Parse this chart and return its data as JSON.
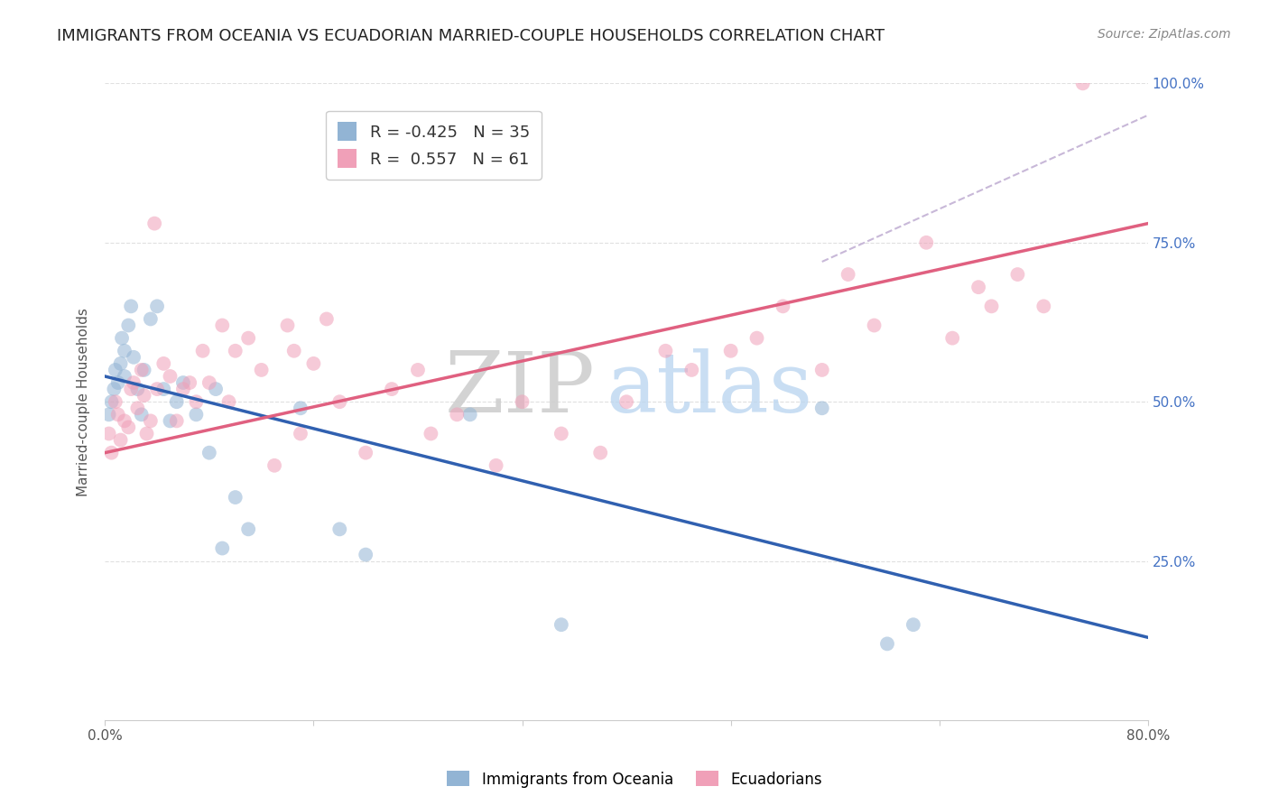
{
  "title": "IMMIGRANTS FROM OCEANIA VS ECUADORIAN MARRIED-COUPLE HOUSEHOLDS CORRELATION CHART",
  "source": "Source: ZipAtlas.com",
  "ylabel": "Married-couple Households",
  "watermark_zip": "ZIP",
  "watermark_atlas": "atlas",
  "legend_line1": "R = -0.425   N = 35",
  "legend_line2": "R =  0.557   N = 61",
  "legend_bottom": [
    "Immigrants from Oceania",
    "Ecuadorians"
  ],
  "blue_scatter_x": [
    0.3,
    0.5,
    0.7,
    0.8,
    1.0,
    1.2,
    1.3,
    1.5,
    1.5,
    1.8,
    2.0,
    2.2,
    2.5,
    2.8,
    3.0,
    3.5,
    4.0,
    4.5,
    5.0,
    5.5,
    6.0,
    7.0,
    8.0,
    8.5,
    9.0,
    10.0,
    11.0,
    15.0,
    18.0,
    20.0,
    28.0,
    35.0,
    55.0,
    60.0,
    62.0
  ],
  "blue_scatter_y": [
    48.0,
    50.0,
    52.0,
    55.0,
    53.0,
    56.0,
    60.0,
    58.0,
    54.0,
    62.0,
    65.0,
    57.0,
    52.0,
    48.0,
    55.0,
    63.0,
    65.0,
    52.0,
    47.0,
    50.0,
    53.0,
    48.0,
    42.0,
    52.0,
    27.0,
    35.0,
    30.0,
    49.0,
    30.0,
    26.0,
    48.0,
    15.0,
    49.0,
    12.0,
    15.0
  ],
  "pink_scatter_x": [
    0.3,
    0.5,
    0.8,
    1.0,
    1.2,
    1.5,
    1.8,
    2.0,
    2.2,
    2.5,
    2.8,
    3.0,
    3.2,
    3.5,
    3.8,
    4.0,
    4.5,
    5.0,
    5.5,
    6.0,
    6.5,
    7.0,
    7.5,
    8.0,
    9.0,
    9.5,
    10.0,
    11.0,
    12.0,
    13.0,
    14.0,
    14.5,
    15.0,
    16.0,
    17.0,
    18.0,
    20.0,
    22.0,
    24.0,
    25.0,
    27.0,
    30.0,
    32.0,
    35.0,
    38.0,
    40.0,
    43.0,
    45.0,
    48.0,
    50.0,
    52.0,
    55.0,
    57.0,
    59.0,
    63.0,
    65.0,
    67.0,
    68.0,
    70.0,
    72.0,
    75.0
  ],
  "pink_scatter_y": [
    45.0,
    42.0,
    50.0,
    48.0,
    44.0,
    47.0,
    46.0,
    52.0,
    53.0,
    49.0,
    55.0,
    51.0,
    45.0,
    47.0,
    78.0,
    52.0,
    56.0,
    54.0,
    47.0,
    52.0,
    53.0,
    50.0,
    58.0,
    53.0,
    62.0,
    50.0,
    58.0,
    60.0,
    55.0,
    40.0,
    62.0,
    58.0,
    45.0,
    56.0,
    63.0,
    50.0,
    42.0,
    52.0,
    55.0,
    45.0,
    48.0,
    40.0,
    50.0,
    45.0,
    42.0,
    50.0,
    58.0,
    55.0,
    58.0,
    60.0,
    65.0,
    55.0,
    70.0,
    62.0,
    75.0,
    60.0,
    68.0,
    65.0,
    70.0,
    65.0,
    100.0
  ],
  "blue_line_x": [
    0.0,
    80.0
  ],
  "blue_line_y": [
    54.0,
    13.0
  ],
  "pink_line_x": [
    0.0,
    80.0
  ],
  "pink_line_y": [
    42.0,
    78.0
  ],
  "dashed_line_x": [
    55.0,
    80.0
  ],
  "dashed_line_y": [
    72.0,
    95.0
  ],
  "xlim": [
    0.0,
    80.0
  ],
  "ylim": [
    0.0,
    100.0
  ],
  "yticks": [
    25.0,
    50.0,
    75.0,
    100.0
  ],
  "ytick_labels": [
    "25.0%",
    "50.0%",
    "75.0%",
    "100.0%"
  ],
  "xtick_positions": [
    0.0,
    16.0,
    32.0,
    48.0,
    64.0,
    80.0
  ],
  "blue_color": "#92b4d4",
  "pink_color": "#f0a0b8",
  "blue_line_color": "#3060b0",
  "pink_line_color": "#e06080",
  "dashed_line_color": "#c8b8d8",
  "grid_color": "#e0e0e0",
  "right_tick_color": "#4472c4",
  "title_fontsize": 13,
  "source_fontsize": 10,
  "marker_size": 130,
  "background_color": "#ffffff"
}
